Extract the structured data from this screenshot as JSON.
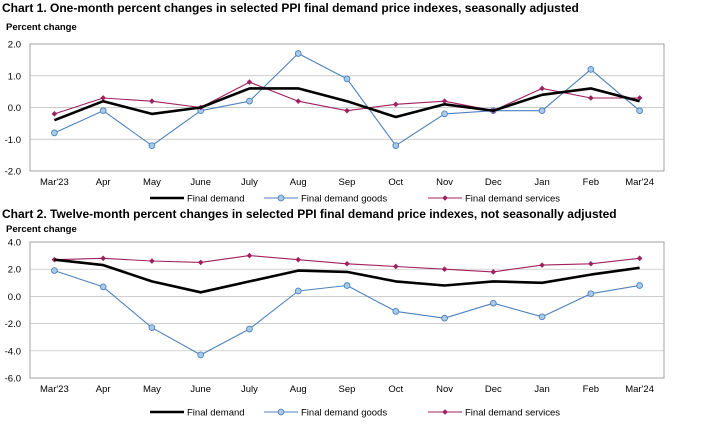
{
  "chart_data": [
    {
      "type": "line",
      "title": "Chart 1. One-month percent changes in selected PPI final demand price indexes, seasonally adjusted",
      "ylabel": "Percent change",
      "xlabel": "",
      "ylim": [
        -2.0,
        2.0
      ],
      "yticks": [
        2.0,
        1.0,
        0.0,
        -1.0,
        -2.0
      ],
      "ytick_labels": [
        "2.0",
        "1.0",
        "0.0",
        "-1.0",
        "-2.0"
      ],
      "categories": [
        "Mar'23",
        "Apr",
        "May",
        "June",
        "July",
        "Aug",
        "Sep",
        "Oct",
        "Nov",
        "Dec",
        "Jan",
        "Feb",
        "Mar'24"
      ],
      "grid": true,
      "legend": "bottom",
      "series": [
        {
          "name": "Final demand",
          "color": "#000000",
          "marker": "none",
          "values": [
            -0.4,
            0.2,
            -0.2,
            0.0,
            0.6,
            0.6,
            0.2,
            -0.3,
            0.1,
            -0.1,
            0.4,
            0.6,
            0.2
          ]
        },
        {
          "name": "Final demand goods",
          "color": "#4f81bd",
          "marker": "circle",
          "values": [
            -0.8,
            -0.1,
            -1.2,
            -0.1,
            0.2,
            1.7,
            0.9,
            -1.2,
            -0.2,
            -0.1,
            -0.1,
            1.2,
            -0.1
          ]
        },
        {
          "name": "Final demand services",
          "color": "#a0215d",
          "marker": "diamond",
          "values": [
            -0.2,
            0.3,
            0.2,
            0.0,
            0.8,
            0.2,
            -0.1,
            0.1,
            0.2,
            -0.1,
            0.6,
            0.3,
            0.3
          ]
        }
      ]
    },
    {
      "type": "line",
      "title": "Chart 2. Twelve-month percent changes in selected PPI final demand price indexes, not seasonally adjusted",
      "ylabel": "Percent change",
      "xlabel": "",
      "ylim": [
        -6.0,
        4.0
      ],
      "yticks": [
        4.0,
        2.0,
        0.0,
        -2.0,
        -4.0,
        -6.0
      ],
      "ytick_labels": [
        "4.0",
        "2.0",
        "0.0",
        "-2.0",
        "-4.0",
        "-6.0"
      ],
      "categories": [
        "Mar'23",
        "Apr",
        "May",
        "June",
        "July",
        "Aug",
        "Sep",
        "Oct",
        "Nov",
        "Dec",
        "Jan",
        "Feb",
        "Mar'24"
      ],
      "grid": true,
      "legend": "bottom",
      "series": [
        {
          "name": "Final demand",
          "color": "#000000",
          "marker": "none",
          "values": [
            2.7,
            2.3,
            1.1,
            0.3,
            1.1,
            1.9,
            1.8,
            1.1,
            0.8,
            1.1,
            1.0,
            1.6,
            2.1
          ]
        },
        {
          "name": "Final demand goods",
          "color": "#4f81bd",
          "marker": "circle",
          "values": [
            1.9,
            0.7,
            -2.3,
            -4.3,
            -2.4,
            0.4,
            0.8,
            -1.1,
            -1.6,
            -0.5,
            -1.5,
            0.2,
            0.8
          ]
        },
        {
          "name": "Final demand services",
          "color": "#a0215d",
          "marker": "diamond",
          "values": [
            2.7,
            2.8,
            2.6,
            2.5,
            3.0,
            2.7,
            2.4,
            2.2,
            2.0,
            1.8,
            2.3,
            2.4,
            2.8
          ]
        }
      ]
    }
  ]
}
